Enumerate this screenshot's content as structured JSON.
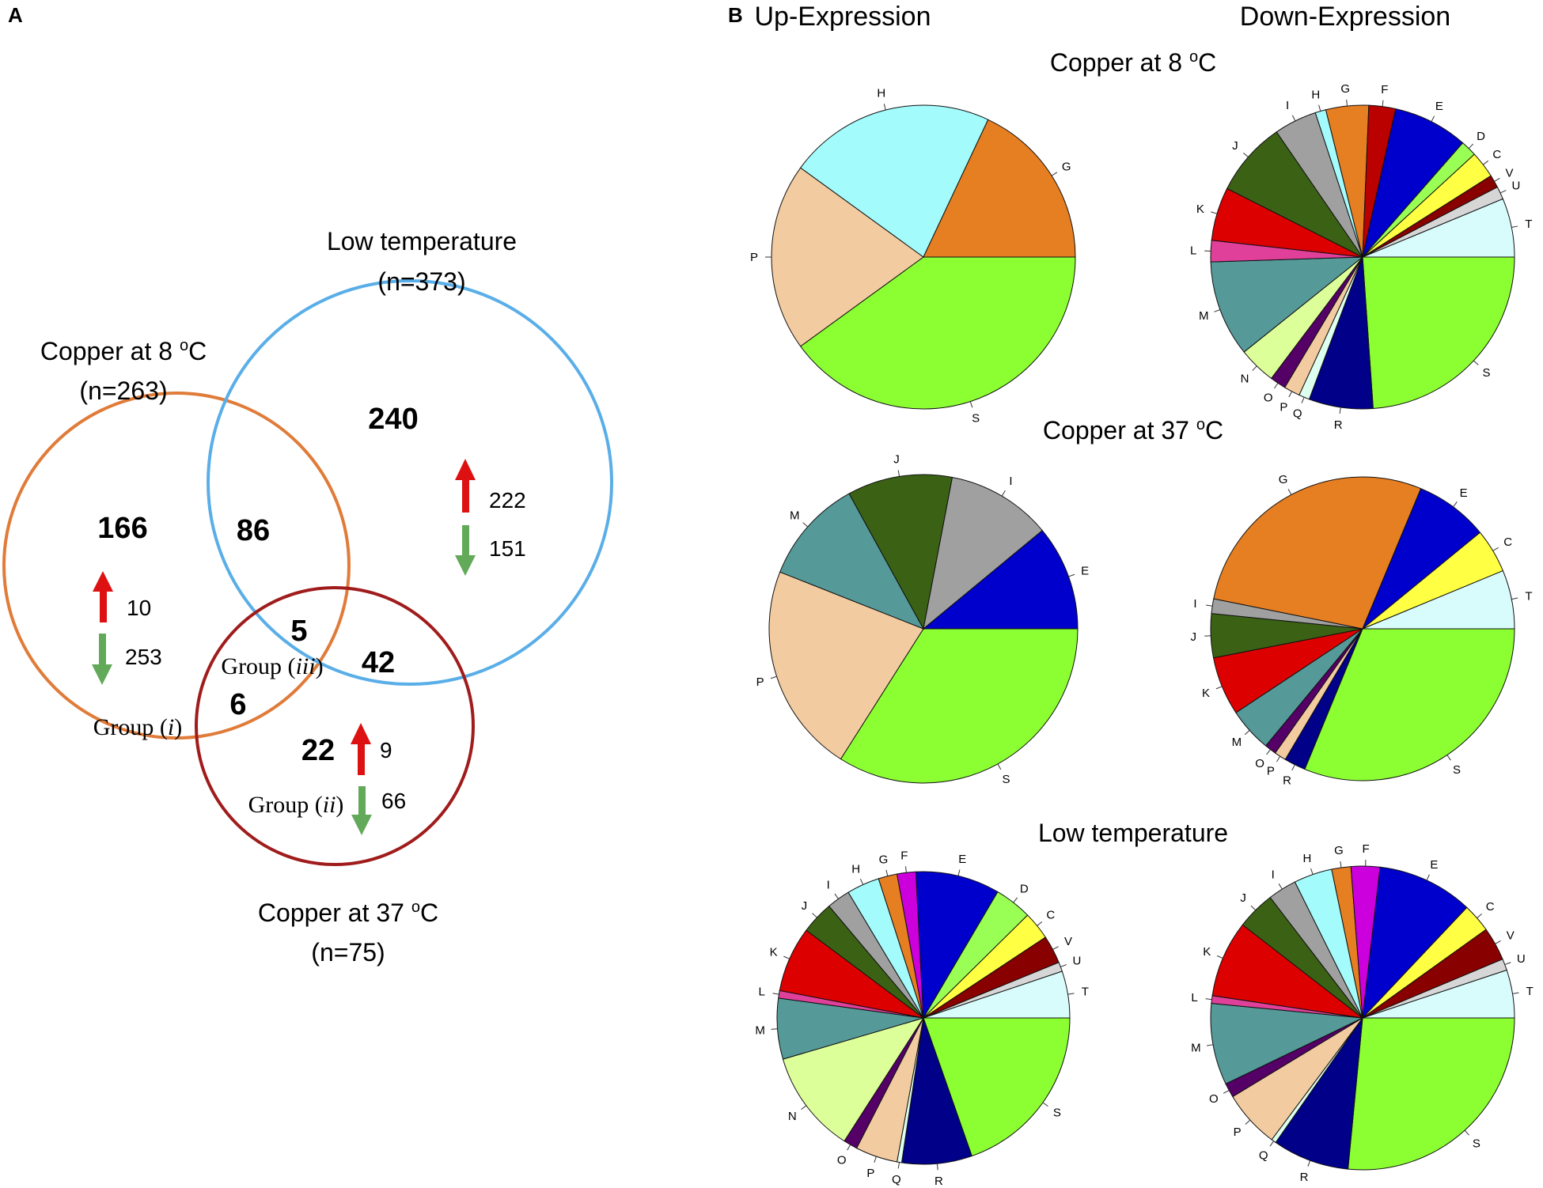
{
  "panels": {
    "a": "A",
    "b": "B"
  },
  "venn": {
    "sets": [
      {
        "name": "Copper at 8 oC",
        "label_main": "Copper at 8 ",
        "label_sup": "o",
        "label_tail": "C",
        "n": "(n=263)",
        "color": "#e07b39"
      },
      {
        "name": "Low temperature",
        "label_main": "Low temperature",
        "n": "(n=373)",
        "color": "#5aaee8"
      },
      {
        "name": "Copper at 37 oC",
        "label_main": "Copper at 37 ",
        "label_sup": "o",
        "label_tail": "C",
        "n": "(n=75)",
        "color": "#a01c1c"
      }
    ],
    "regions": [
      {
        "id": "cu8_only",
        "value": "166"
      },
      {
        "id": "lowtemp_only",
        "value": "240"
      },
      {
        "id": "cu8_lowtemp",
        "value": "86"
      },
      {
        "id": "all_three",
        "value": "5"
      },
      {
        "id": "lowtemp_cu37",
        "value": "42"
      },
      {
        "id": "cu8_cu37",
        "value": "6"
      },
      {
        "id": "cu37_only",
        "value": "22"
      }
    ],
    "groups": [
      {
        "prefix": "Group (",
        "roman": "i",
        "suffix": ")"
      },
      {
        "prefix": "Group (",
        "roman": "ii",
        "suffix": ")"
      },
      {
        "prefix": "Group (",
        "roman": "iii",
        "suffix": ")"
      }
    ],
    "arrows": {
      "cu8": {
        "up": "10",
        "down": "253"
      },
      "lowtemp": {
        "up": "222",
        "down": "151"
      },
      "cu37": {
        "up": "9",
        "down": "66"
      }
    },
    "arrow_colors": {
      "up": "#dd1111",
      "down": "#63a95a"
    }
  },
  "pies": {
    "col_headers": [
      "Up-Expression",
      "Down-Expression"
    ],
    "row_titles": [
      {
        "main": "Copper at 8 ",
        "sup": "o",
        "tail": "C"
      },
      {
        "main": "Copper at 37 ",
        "sup": "o",
        "tail": "C"
      },
      {
        "main": "Low temperature",
        "sup": "",
        "tail": ""
      }
    ],
    "category_colors": {
      "C": "#ffff44",
      "D": "#99ff55",
      "E": "#0000cc",
      "F": "#bb0000",
      "G": "#e67e22",
      "H": "#a4fbfb",
      "I": "#a0a0a0",
      "J": "#3b6114",
      "K": "#dd0000",
      "L": "#e0409a",
      "M": "#559999",
      "N": "#ddff99",
      "O": "#550066",
      "P": "#f2cba0",
      "Q": "#ddfff0",
      "R": "#000088",
      "S": "#8cff33",
      "T": "#d8fcfc",
      "U": "#d6d6d6",
      "V": "#880000"
    },
    "special_colors": {
      "lowtemp_up_F": "#cc00dd",
      "lowtemp_down_F": "#cc00dd"
    }
  },
  "chart_data": [
    {
      "type": "pie",
      "condition": "Copper at 8 oC",
      "direction": "Up-Expression",
      "slices": [
        {
          "label": "G",
          "value": 18
        },
        {
          "label": "H",
          "value": 22
        },
        {
          "label": "P",
          "value": 20
        },
        {
          "label": "S",
          "value": 40
        }
      ]
    },
    {
      "type": "pie",
      "condition": "Copper at 8 oC",
      "direction": "Down-Expression",
      "slices": [
        {
          "label": "C",
          "value": 2.5
        },
        {
          "label": "D",
          "value": 1.5
        },
        {
          "label": "E",
          "value": 7
        },
        {
          "label": "F",
          "value": 2.5
        },
        {
          "label": "G",
          "value": 4
        },
        {
          "label": "H",
          "value": 1
        },
        {
          "label": "I",
          "value": 4
        },
        {
          "label": "J",
          "value": 7
        },
        {
          "label": "K",
          "value": 5
        },
        {
          "label": "L",
          "value": 2
        },
        {
          "label": "M",
          "value": 9
        },
        {
          "label": "N",
          "value": 3.5
        },
        {
          "label": "O",
          "value": 1.5
        },
        {
          "label": "P",
          "value": 1.5
        },
        {
          "label": "Q",
          "value": 1
        },
        {
          "label": "R",
          "value": 6
        },
        {
          "label": "S",
          "value": 21
        },
        {
          "label": "T",
          "value": 5.5
        },
        {
          "label": "U",
          "value": 1.2
        },
        {
          "label": "V",
          "value": 1.2
        }
      ]
    },
    {
      "type": "pie",
      "condition": "Copper at 37 oC",
      "direction": "Up-Expression",
      "slices": [
        {
          "label": "E",
          "value": 11
        },
        {
          "label": "I",
          "value": 11
        },
        {
          "label": "J",
          "value": 11
        },
        {
          "label": "M",
          "value": 11
        },
        {
          "label": "P",
          "value": 22
        },
        {
          "label": "S",
          "value": 34
        }
      ]
    },
    {
      "type": "pie",
      "condition": "Copper at 37 oC",
      "direction": "Down-Expression",
      "slices": [
        {
          "label": "C",
          "value": 4.5
        },
        {
          "label": "E",
          "value": 7.5
        },
        {
          "label": "G",
          "value": 27
        },
        {
          "label": "I",
          "value": 1.5
        },
        {
          "label": "J",
          "value": 4.5
        },
        {
          "label": "K",
          "value": 6
        },
        {
          "label": "M",
          "value": 4.5
        },
        {
          "label": "O",
          "value": 1.2
        },
        {
          "label": "P",
          "value": 1.2
        },
        {
          "label": "R",
          "value": 2.2
        },
        {
          "label": "S",
          "value": 30
        },
        {
          "label": "T",
          "value": 6
        }
      ]
    },
    {
      "type": "pie",
      "condition": "Low temperature",
      "direction": "Up-Expression",
      "slices": [
        {
          "label": "C",
          "value": 3
        },
        {
          "label": "D",
          "value": 4
        },
        {
          "label": "E",
          "value": 9
        },
        {
          "label": "F",
          "value": 2
        },
        {
          "label": "G",
          "value": 2
        },
        {
          "label": "H",
          "value": 3.5
        },
        {
          "label": "I",
          "value": 2.5
        },
        {
          "label": "J",
          "value": 3.5
        },
        {
          "label": "K",
          "value": 7
        },
        {
          "label": "L",
          "value": 0.8
        },
        {
          "label": "M",
          "value": 6.5
        },
        {
          "label": "N",
          "value": 11
        },
        {
          "label": "O",
          "value": 1.5
        },
        {
          "label": "P",
          "value": 4.5
        },
        {
          "label": "Q",
          "value": 0.5
        },
        {
          "label": "R",
          "value": 7.5
        },
        {
          "label": "S",
          "value": 19
        },
        {
          "label": "T",
          "value": 5
        },
        {
          "label": "U",
          "value": 1
        },
        {
          "label": "V",
          "value": 3
        }
      ]
    },
    {
      "type": "pie",
      "condition": "Low temperature",
      "direction": "Down-Expression",
      "slices": [
        {
          "label": "C",
          "value": 3
        },
        {
          "label": "E",
          "value": 10
        },
        {
          "label": "F",
          "value": 3
        },
        {
          "label": "G",
          "value": 2
        },
        {
          "label": "H",
          "value": 4
        },
        {
          "label": "I",
          "value": 3
        },
        {
          "label": "J",
          "value": 4
        },
        {
          "label": "K",
          "value": 8
        },
        {
          "label": "L",
          "value": 0.8
        },
        {
          "label": "M",
          "value": 8.5
        },
        {
          "label": "O",
          "value": 1.5
        },
        {
          "label": "P",
          "value": 6
        },
        {
          "label": "Q",
          "value": 0.5
        },
        {
          "label": "R",
          "value": 8
        },
        {
          "label": "S",
          "value": 26
        },
        {
          "label": "T",
          "value": 5
        },
        {
          "label": "U",
          "value": 1.2
        },
        {
          "label": "V",
          "value": 3.5
        }
      ]
    }
  ]
}
